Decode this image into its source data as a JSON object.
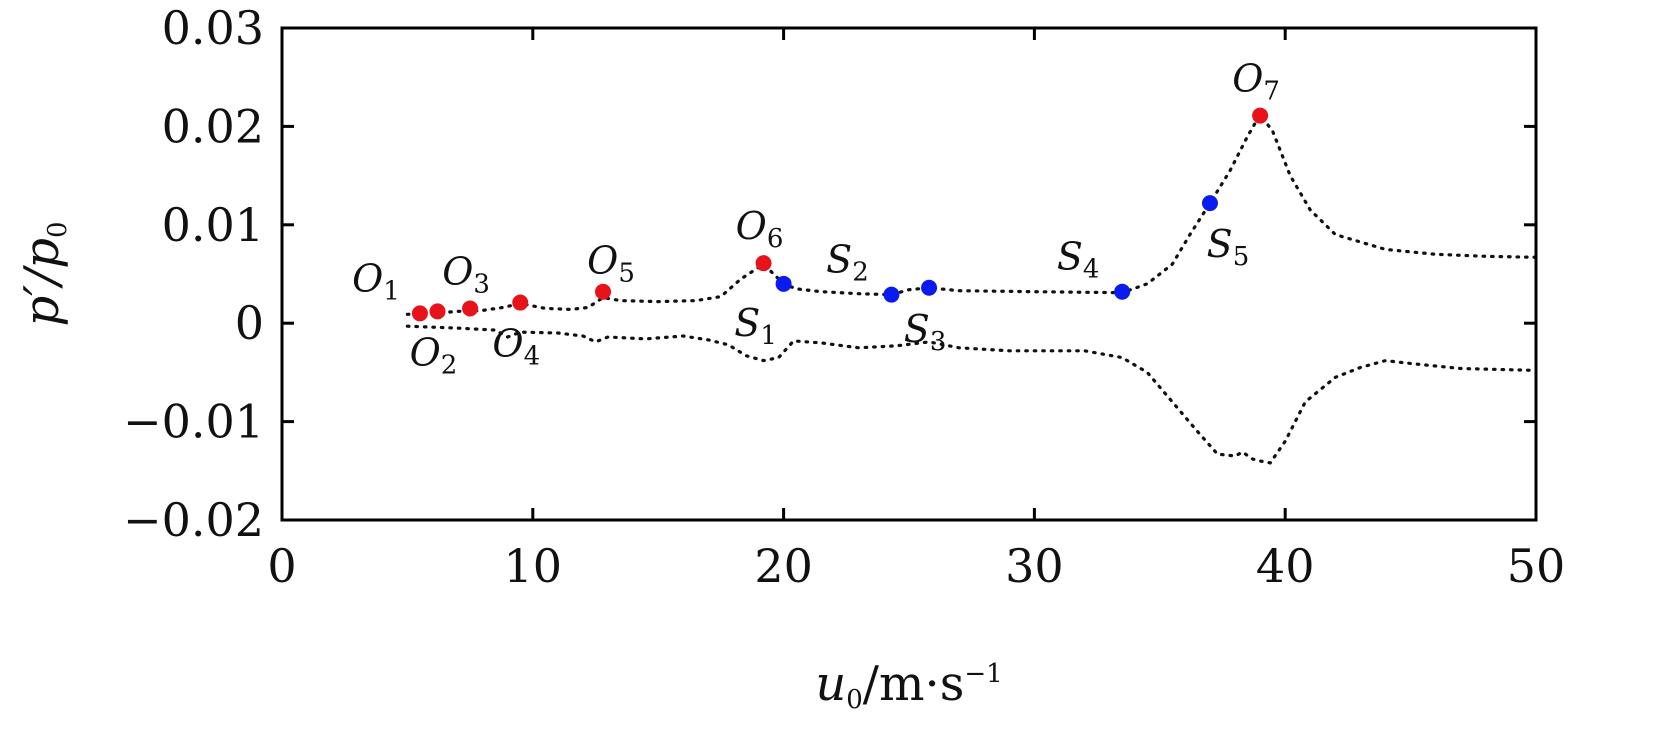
{
  "chart_data": {
    "type": "scatter",
    "xlabel": "u0/m·s−1",
    "ylabel": "p′/p0",
    "xlim": [
      0,
      50
    ],
    "ylim": [
      -0.02,
      0.03
    ],
    "x_ticks": [
      "0",
      "10",
      "20",
      "30",
      "40",
      "50"
    ],
    "y_ticks": [
      "−0.02",
      "−0.01",
      "0",
      "0.01",
      "0.02",
      "0.03"
    ],
    "x_tick_values": [
      0,
      10,
      20,
      30,
      40,
      50
    ],
    "y_tick_values": [
      -0.02,
      -0.01,
      0,
      0.01,
      0.02,
      0.03
    ],
    "grid": false,
    "series": [
      {
        "role": "upper-envelope",
        "style": "dotted",
        "x": [
          5.0,
          6.0,
          7.0,
          8.0,
          8.8,
          9.5,
          10.5,
          11.5,
          12.2,
          12.8,
          13.5,
          15.0,
          16.5,
          17.5,
          18.3,
          19.2,
          19.6,
          20.0,
          20.5,
          21.5,
          23.0,
          24.3,
          25.0,
          25.8,
          27.0,
          30.0,
          33.5,
          34.5,
          35.5,
          36.2,
          37.0,
          37.8,
          38.5,
          39.0,
          39.5,
          40.2,
          41.0,
          42.0,
          44.0,
          46.0,
          48.0,
          50.0
        ],
        "y": [
          0.0009,
          0.001,
          0.0012,
          0.0013,
          0.0016,
          0.002,
          0.0015,
          0.0014,
          0.0016,
          0.0026,
          0.0023,
          0.0022,
          0.0023,
          0.0027,
          0.0045,
          0.006,
          0.005,
          0.004,
          0.0035,
          0.0032,
          0.003,
          0.0029,
          0.0034,
          0.0036,
          0.0033,
          0.0032,
          0.0031,
          0.004,
          0.006,
          0.009,
          0.0122,
          0.0155,
          0.019,
          0.0212,
          0.0195,
          0.015,
          0.0115,
          0.009,
          0.0075,
          0.007,
          0.0068,
          0.0067
        ]
      },
      {
        "role": "lower-envelope",
        "style": "dotted",
        "x": [
          5.0,
          7.0,
          8.5,
          9.0,
          9.5,
          11.0,
          12.0,
          12.5,
          13.0,
          14.5,
          16.0,
          17.0,
          17.8,
          18.5,
          19.2,
          19.8,
          20.4,
          21.5,
          23.0,
          24.5,
          25.8,
          27.0,
          29.0,
          32.0,
          33.5,
          34.5,
          35.5,
          36.5,
          37.3,
          38.0,
          38.3,
          38.7,
          39.0,
          39.4,
          40.0,
          40.8,
          42.0,
          43.0,
          44.0,
          45.0,
          47.0,
          50.0
        ],
        "y": [
          -0.0003,
          -0.0005,
          -0.0007,
          -0.0014,
          -0.0009,
          -0.001,
          -0.0013,
          -0.0019,
          -0.0014,
          -0.0016,
          -0.0013,
          -0.0017,
          -0.0022,
          -0.0033,
          -0.0038,
          -0.0035,
          -0.0018,
          -0.002,
          -0.0025,
          -0.0023,
          -0.0019,
          -0.0025,
          -0.0028,
          -0.0028,
          -0.0035,
          -0.005,
          -0.008,
          -0.011,
          -0.0133,
          -0.0135,
          -0.0131,
          -0.0138,
          -0.014,
          -0.0142,
          -0.012,
          -0.008,
          -0.0055,
          -0.0045,
          -0.0038,
          -0.0041,
          -0.0046,
          -0.0048
        ]
      }
    ],
    "points": [
      {
        "name": "O",
        "sub": "1",
        "group": "O",
        "x": 5.5,
        "y": 0.001,
        "label_pos": "above-left"
      },
      {
        "name": "O",
        "sub": "2",
        "group": "O",
        "x": 6.2,
        "y": 0.0012,
        "label_pos": "below"
      },
      {
        "name": "O",
        "sub": "3",
        "group": "O",
        "x": 7.5,
        "y": 0.0015,
        "label_pos": "above"
      },
      {
        "name": "O",
        "sub": "4",
        "group": "O",
        "x": 9.5,
        "y": 0.0021,
        "label_pos": "below"
      },
      {
        "name": "O",
        "sub": "5",
        "group": "O",
        "x": 12.8,
        "y": 0.0032,
        "label_pos": "above-right"
      },
      {
        "name": "O",
        "sub": "6",
        "group": "O",
        "x": 19.2,
        "y": 0.0061,
        "label_pos": "above"
      },
      {
        "name": "O",
        "sub": "7",
        "group": "O",
        "x": 39.0,
        "y": 0.0211,
        "label_pos": "above"
      },
      {
        "name": "S",
        "sub": "1",
        "group": "S",
        "x": 20.0,
        "y": 0.004,
        "label_pos": "below-left"
      },
      {
        "name": "S",
        "sub": "2",
        "group": "S",
        "x": 24.3,
        "y": 0.0029,
        "label_pos": "above-left"
      },
      {
        "name": "S",
        "sub": "3",
        "group": "S",
        "x": 25.8,
        "y": 0.0036,
        "label_pos": "below"
      },
      {
        "name": "S",
        "sub": "4",
        "group": "S",
        "x": 33.5,
        "y": 0.0032,
        "label_pos": "above-left"
      },
      {
        "name": "S",
        "sub": "5",
        "group": "S",
        "x": 37.0,
        "y": 0.0122,
        "label_pos": "below-right"
      }
    ],
    "colors": {
      "O": "#e8121a",
      "S": "#0a1bef",
      "curve": "#111111",
      "axes": "#000000"
    }
  }
}
